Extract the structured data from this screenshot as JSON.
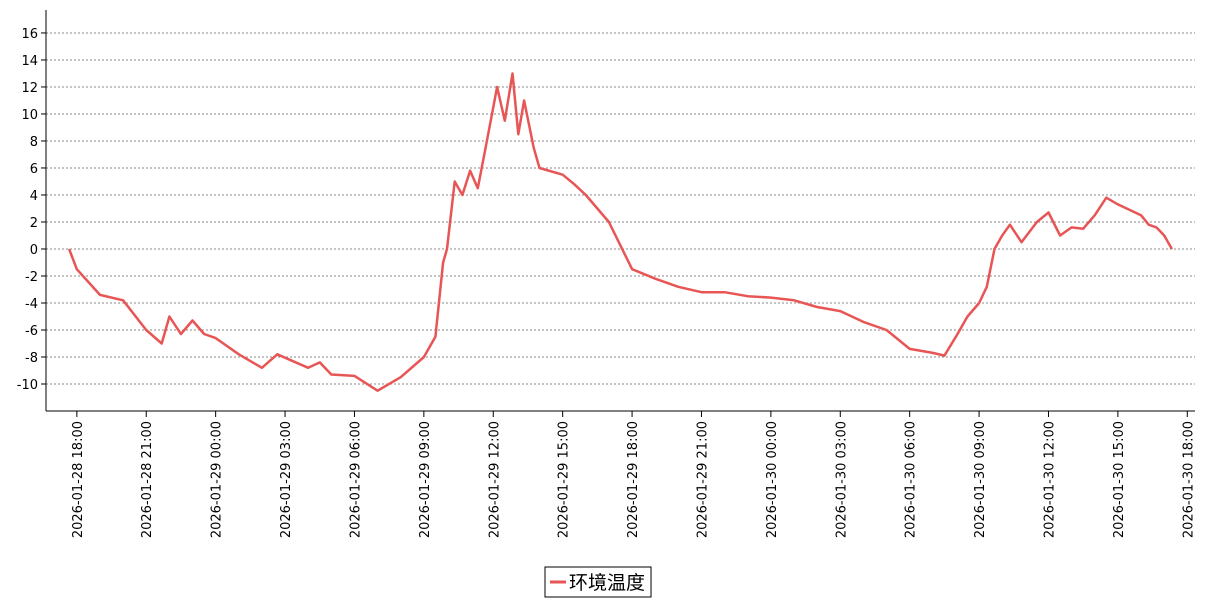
{
  "chart_data": {
    "type": "line",
    "x": [
      "2026-01-28 17:40",
      "2026-01-28 18:00",
      "2026-01-28 19:00",
      "2026-01-28 20:00",
      "2026-01-28 21:00",
      "2026-01-28 21:40",
      "2026-01-28 22:00",
      "2026-01-28 22:30",
      "2026-01-28 23:00",
      "2026-01-28 23:30",
      "2026-01-29 00:00",
      "2026-01-29 01:00",
      "2026-01-29 02:00",
      "2026-01-29 02:40",
      "2026-01-29 04:00",
      "2026-01-29 04:30",
      "2026-01-29 05:00",
      "2026-01-29 06:00",
      "2026-01-29 07:00",
      "2026-01-29 08:00",
      "2026-01-29 09:00",
      "2026-01-29 09:30",
      "2026-01-29 09:50",
      "2026-01-29 10:00",
      "2026-01-29 10:20",
      "2026-01-29 10:40",
      "2026-01-29 11:00",
      "2026-01-29 11:20",
      "2026-01-29 11:40",
      "2026-01-29 12:00",
      "2026-01-29 12:10",
      "2026-01-29 12:30",
      "2026-01-29 12:50",
      "2026-01-29 13:05",
      "2026-01-29 13:20",
      "2026-01-29 13:45",
      "2026-01-29 14:00",
      "2026-01-29 15:00",
      "2026-01-29 15:30",
      "2026-01-29 16:00",
      "2026-01-29 17:00",
      "2026-01-29 18:00",
      "2026-01-29 19:00",
      "2026-01-29 20:00",
      "2026-01-29 21:00",
      "2026-01-29 22:00",
      "2026-01-29 23:00",
      "2026-01-30 00:00",
      "2026-01-30 01:00",
      "2026-01-30 02:00",
      "2026-01-30 03:00",
      "2026-01-30 04:00",
      "2026-01-30 05:00",
      "2026-01-30 06:00",
      "2026-01-30 07:00",
      "2026-01-30 07:30",
      "2026-01-30 08:00",
      "2026-01-30 08:30",
      "2026-01-30 09:00",
      "2026-01-30 09:20",
      "2026-01-30 09:40",
      "2026-01-30 10:00",
      "2026-01-30 10:20",
      "2026-01-30 10:50",
      "2026-01-30 11:30",
      "2026-01-30 12:00",
      "2026-01-30 12:30",
      "2026-01-30 13:00",
      "2026-01-30 13:30",
      "2026-01-30 14:00",
      "2026-01-30 14:30",
      "2026-01-30 15:00",
      "2026-01-30 16:00",
      "2026-01-30 16:20",
      "2026-01-30 16:40",
      "2026-01-30 17:00",
      "2026-01-30 17:20"
    ],
    "series": [
      {
        "name": "环境温度",
        "color": "#e85555",
        "values": [
          0,
          -1.5,
          -3.4,
          -3.8,
          -6,
          -7.0,
          -5.0,
          -6.3,
          -5.3,
          -6.3,
          -6.6,
          -7.8,
          -8.8,
          -7.8,
          -8.8,
          -8.4,
          -9.3,
          -9.4,
          -10.5,
          -9.5,
          -8.0,
          -6.5,
          -1.0,
          0,
          5,
          4,
          5.8,
          4.5,
          7.5,
          10.5,
          12,
          9.5,
          13,
          8.5,
          11,
          7.5,
          6,
          5.5,
          4.8,
          4,
          2,
          -1.5,
          -2.2,
          -2.8,
          -3.2,
          -3.2,
          -3.5,
          -3.6,
          -3.8,
          -4.3,
          -4.6,
          -5.4,
          -6.0,
          -7.4,
          -7.7,
          -7.9,
          -6.5,
          -5.0,
          -4,
          -2.8,
          0,
          1,
          1.8,
          0.5,
          2,
          2.7,
          1,
          1.6,
          1.5,
          2.5,
          3.8,
          3.3,
          2.5,
          1.8,
          1.6,
          1,
          0
        ]
      }
    ],
    "xlim": [
      "2026-01-28 16:40",
      "2026-01-30 18:20"
    ],
    "xticks": [
      "2026-01-28 18:00",
      "2026-01-28 21:00",
      "2026-01-29 00:00",
      "2026-01-29 03:00",
      "2026-01-29 06:00",
      "2026-01-29 09:00",
      "2026-01-29 12:00",
      "2026-01-29 15:00",
      "2026-01-29 18:00",
      "2026-01-29 21:00",
      "2026-01-30 00:00",
      "2026-01-30 03:00",
      "2026-01-30 06:00",
      "2026-01-30 09:00",
      "2026-01-30 12:00",
      "2026-01-30 15:00",
      "2026-01-30 18:00"
    ],
    "ylim": [
      -12,
      17.7
    ],
    "yticks": [
      -10,
      -8,
      -6,
      -4,
      -2,
      0,
      2,
      4,
      6,
      8,
      10,
      12,
      14,
      16
    ],
    "grid": true,
    "legend": "bottom"
  }
}
